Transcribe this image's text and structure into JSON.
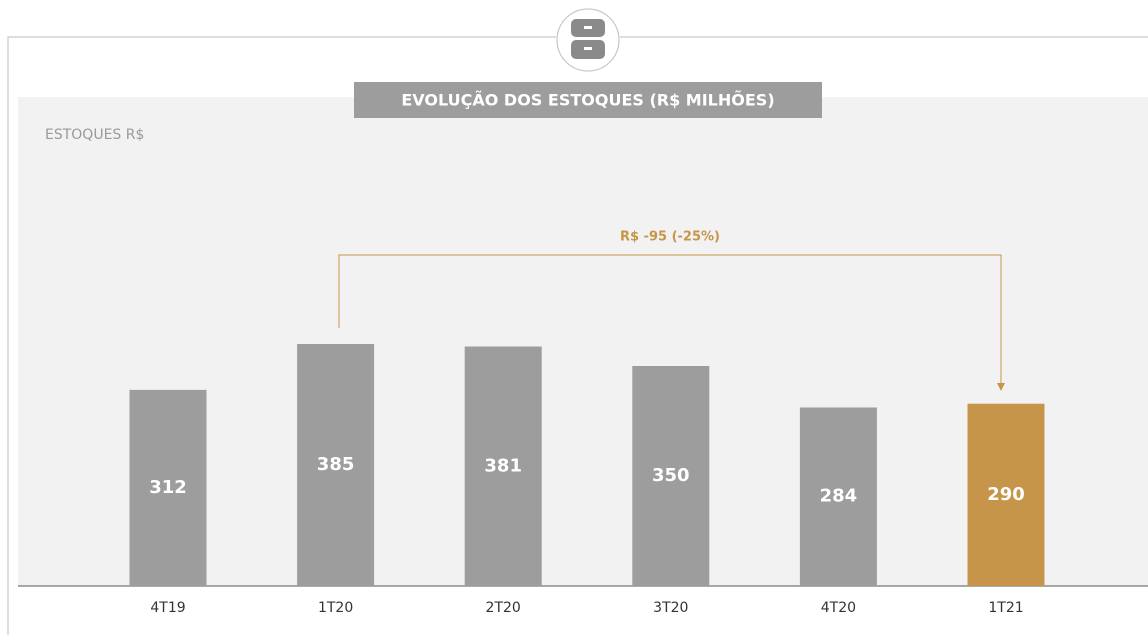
{
  "chart_data": {
    "type": "bar",
    "title": "EVOLUÇÃO DOS ESTOQUES (R$ MILHÕES)",
    "subtitle": "ESTOQUES R$",
    "categories": [
      "4T19",
      "1T20",
      "2T20",
      "3T20",
      "4T20",
      "1T21"
    ],
    "values": [
      312,
      385,
      381,
      350,
      284,
      290
    ],
    "colors": [
      "#9d9d9d",
      "#9d9d9d",
      "#9d9d9d",
      "#9d9d9d",
      "#9d9d9d",
      "#c6954a"
    ],
    "annotation": "R$ -95 (-25%)"
  }
}
